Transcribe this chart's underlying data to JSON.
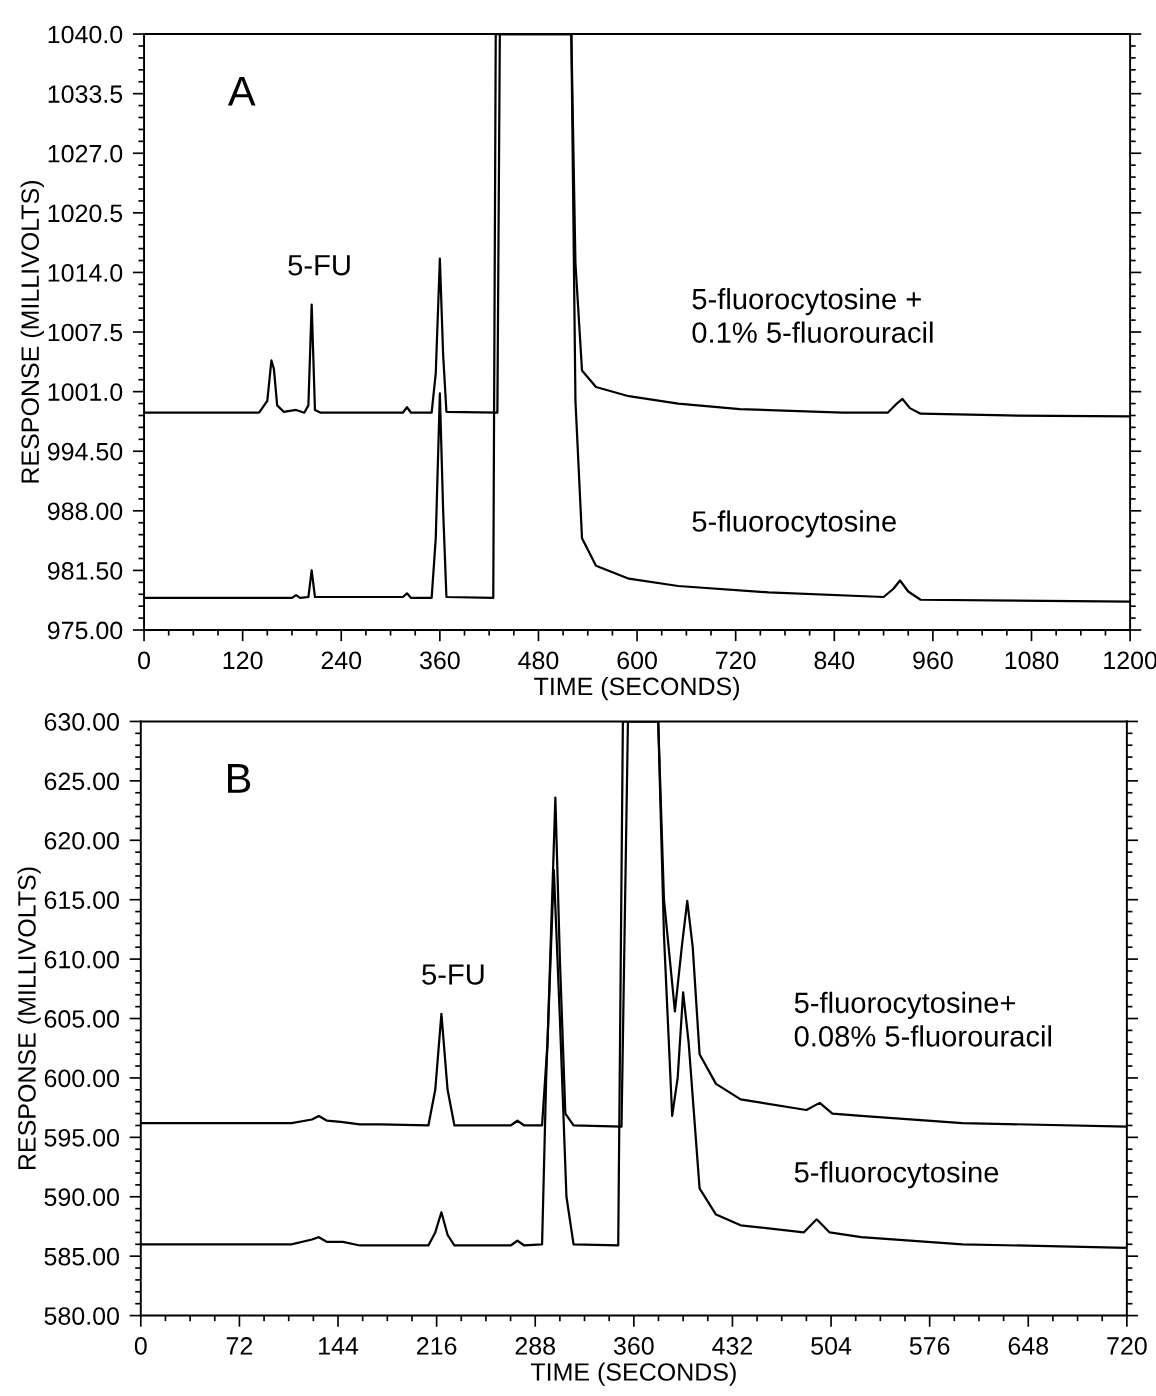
{
  "chart_data": [
    {
      "type": "line",
      "title": "A",
      "xlabel": "TIME (SECONDS)",
      "ylabel": "RESPONSE (MILLIVOLTS)",
      "xlim": [
        0,
        1200
      ],
      "ylim": [
        975,
        1040
      ],
      "xticks": [
        0,
        120,
        240,
        360,
        480,
        600,
        720,
        840,
        960,
        1080,
        1200
      ],
      "yticks": [
        {
          "value": 975,
          "label": "975.00"
        },
        {
          "value": 981.5,
          "label": "981.50"
        },
        {
          "value": 988,
          "label": "988.00"
        },
        {
          "value": 994.5,
          "label": "994.50"
        },
        {
          "value": 1001,
          "label": "1001.0"
        },
        {
          "value": 1007.5,
          "label": "1007.5"
        },
        {
          "value": 1014,
          "label": "1014.0"
        },
        {
          "value": 1020.5,
          "label": "1020.5"
        },
        {
          "value": 1027,
          "label": "1027.0"
        },
        {
          "value": 1033.5,
          "label": "1033.5"
        },
        {
          "value": 1040,
          "label": "1040.0"
        }
      ],
      "grid": false,
      "marker": "none",
      "line_style": "solid",
      "series": [
        {
          "name": "5-fluorocytosine +\n0.1% 5-fluorouracil",
          "color": "#000000",
          "x": [
            0,
            140,
            150,
            155,
            158,
            162,
            170,
            185,
            195,
            200,
            204,
            208,
            215,
            315,
            320,
            325,
            350,
            355,
            360,
            364,
            368,
            430,
            433,
            520,
            525,
            533,
            550,
            590,
            650,
            725,
            850,
            905,
            915,
            923,
            932,
            945,
            1050,
            1200
          ],
          "values": [
            998.7,
            998.7,
            1000,
            1004.4,
            1003.5,
            999.5,
            998.8,
            999.0,
            998.7,
            999.5,
            1010.5,
            999.0,
            998.7,
            998.7,
            999.3,
            998.7,
            998.7,
            1003,
            1015.5,
            1005,
            998.8,
            998.7,
            1040,
            1040,
            1015,
            1003.3,
            1001.5,
            1000.5,
            999.7,
            999.1,
            998.7,
            998.7,
            999.6,
            1000.2,
            999.2,
            998.6,
            998.4,
            998.3
          ]
        },
        {
          "name": "5-fluorocytosine",
          "color": "#000000",
          "x": [
            0,
            180,
            185,
            190,
            200,
            204,
            208,
            315,
            320,
            325,
            350,
            355,
            360,
            364,
            368,
            425,
            428,
            520,
            525,
            533,
            550,
            590,
            650,
            760,
            900,
            912,
            920,
            930,
            945,
            1200
          ],
          "values": [
            978.5,
            978.5,
            978.8,
            978.5,
            978.6,
            981.5,
            978.6,
            978.6,
            979.0,
            978.5,
            978.5,
            985,
            1000.8,
            988,
            978.6,
            978.5,
            1040,
            1040,
            1000,
            985,
            982.0,
            980.6,
            979.8,
            979.1,
            978.6,
            979.5,
            980.4,
            979.2,
            978.3,
            978.1
          ]
        }
      ],
      "annotations": [
        "5-FU"
      ]
    },
    {
      "type": "line",
      "title": "B",
      "xlabel": "TIME (SECONDS)",
      "ylabel": "RESPONSE (MILLIVOLTS)",
      "xlim": [
        0,
        720
      ],
      "ylim": [
        580,
        630
      ],
      "xticks": [
        0,
        72,
        144,
        216,
        288,
        360,
        432,
        504,
        576,
        648,
        720
      ],
      "yticks": [
        {
          "value": 580,
          "label": "580.00"
        },
        {
          "value": 585,
          "label": "585.00"
        },
        {
          "value": 590,
          "label": "590.00"
        },
        {
          "value": 595,
          "label": "595.00"
        },
        {
          "value": 600,
          "label": "600.00"
        },
        {
          "value": 605,
          "label": "605.00"
        },
        {
          "value": 610,
          "label": "610.00"
        },
        {
          "value": 615,
          "label": "615.00"
        },
        {
          "value": 620,
          "label": "620.00"
        },
        {
          "value": 625,
          "label": "625.00"
        },
        {
          "value": 630,
          "label": "630.00"
        }
      ],
      "grid": false,
      "marker": "none",
      "line_style": "solid",
      "series": [
        {
          "name": "5-fluorocytosine+\n0.08% 5-fluorouracil",
          "color": "#000000",
          "x": [
            0,
            110,
            125,
            130,
            136,
            146,
            160,
            175,
            210,
            215,
            219.5,
            224,
            229,
            270,
            275,
            280,
            293,
            297,
            302.7,
            306,
            310,
            316,
            351,
            355.7,
            377.8,
            382,
            390,
            395,
            399,
            403,
            408,
            420,
            438,
            486,
            495.7,
            505,
            526,
            600,
            720
          ],
          "values": [
            596.2,
            596.2,
            596.5,
            596.8,
            596.4,
            596.3,
            596.1,
            596.1,
            596.0,
            599,
            605.4,
            599,
            596.0,
            596.0,
            596.4,
            596.0,
            596.0,
            603,
            623.6,
            610,
            597,
            596.0,
            595.9,
            630,
            630,
            615,
            605.6,
            611,
            614.9,
            611,
            602,
            599.5,
            598.2,
            597.3,
            597.9,
            597.0,
            596.8,
            596.2,
            595.9
          ]
        },
        {
          "name": "5-fluorocytosine",
          "color": "#000000",
          "x": [
            0,
            110,
            125,
            130,
            136,
            147.6,
            160,
            210,
            215,
            219.5,
            224,
            229,
            270,
            275,
            280,
            293,
            296,
            301.6,
            306,
            310.8,
            316,
            348.6,
            352,
            377.8,
            382,
            388,
            392,
            396,
            400,
            408,
            420,
            438,
            484,
            493.5,
            503,
            526,
            600,
            720
          ],
          "values": [
            586.0,
            586.0,
            586.4,
            586.6,
            586.2,
            586.2,
            585.9,
            585.9,
            587,
            588.7,
            586.8,
            585.9,
            585.9,
            586.3,
            585.9,
            586.0,
            600,
            617.5,
            605,
            590,
            586.0,
            585.9,
            630,
            630,
            612,
            596.8,
            600,
            607.2,
            603,
            590.7,
            588.5,
            587.6,
            587.0,
            588.1,
            587.0,
            586.6,
            586.0,
            585.7
          ]
        }
      ],
      "annotations": [
        "5-FU"
      ]
    }
  ]
}
